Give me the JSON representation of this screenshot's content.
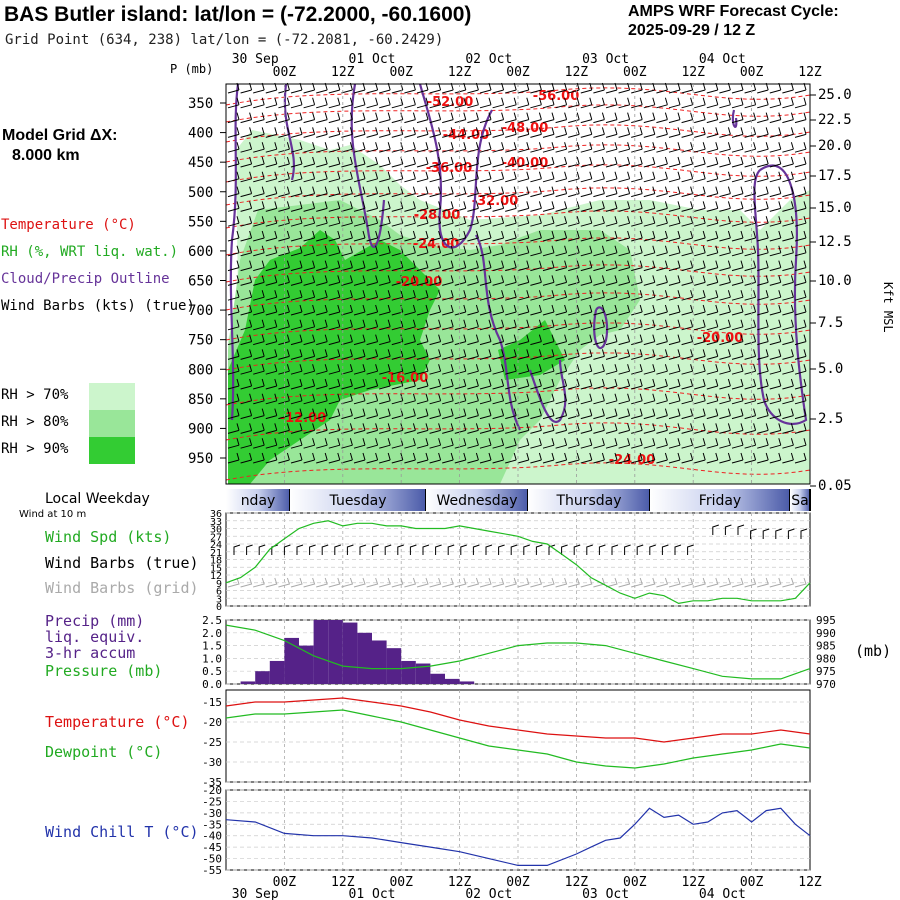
{
  "header": {
    "title": "BAS Butler island:  lat/lon = (-72.2000, -60.1600)",
    "grid_point": "Grid Point (634, 238) lat/lon = (-72.2081, -60.2429)",
    "forecast_title": "AMPS WRF Forecast Cycle:",
    "forecast_cycle": "2025-09-29 / 12  Z"
  },
  "left_panel": {
    "grid_title": "Model Grid ΔX:",
    "grid_value": "8.000 km",
    "legend": [
      {
        "text": "Temperature (°C)",
        "color": "#dd1111"
      },
      {
        "text": "RH (%, WRT liq. wat.)",
        "color": "#22aa22"
      },
      {
        "text": "Cloud/Precip Outline",
        "color": "#663399"
      },
      {
        "text": "Wind Barbs (kts) (true)",
        "color": "#000000"
      }
    ],
    "rh_legend": [
      {
        "text": "RH > 70%",
        "color": "#ccf5cc"
      },
      {
        "text": "RH > 80%",
        "color": "#99e699"
      },
      {
        "text": "RH > 90%",
        "color": "#33cc33"
      }
    ]
  },
  "time_axis": {
    "top_dates": [
      "30 Sep",
      "01 Oct",
      "02 Oct",
      "03 Oct",
      "04 Oct"
    ],
    "bottom_dates": [
      "30 Sep",
      "01 Oct",
      "02 Oct",
      "03 Oct",
      "04 Oct"
    ],
    "hour_labels": [
      "00Z",
      "12Z",
      "00Z",
      "12Z",
      "00Z",
      "12Z",
      "00Z",
      "12Z",
      "00Z",
      "12Z"
    ]
  },
  "weekday_bar": {
    "title": "Local Weekday",
    "sub": "Wind at 10 m",
    "days": [
      "nday",
      "Tuesday",
      "Wednesday",
      "Thursday",
      "Friday",
      "Sa"
    ]
  },
  "panel_labels": {
    "wind": [
      {
        "text": "Wind Spd (kts)",
        "color": "#22aa22"
      },
      {
        "text": "Wind Barbs (true)",
        "color": "#000000"
      },
      {
        "text": "Wind Barbs (grid)",
        "color": "#aaaaaa"
      }
    ],
    "precip": [
      {
        "text": "Precip (mm)",
        "color": "#552288"
      },
      {
        "text": "liq. equiv.",
        "color": "#552288"
      },
      {
        "text": "3-hr accum",
        "color": "#552288"
      },
      {
        "text": "Pressure (mb)",
        "color": "#22aa22"
      }
    ],
    "pressure_unit": "(mb)",
    "temp": [
      {
        "text": "Temperature (°C)",
        "color": "#dd1111"
      },
      {
        "text": "Dewpoint (°C)",
        "color": "#22aa22"
      }
    ],
    "chill": [
      {
        "text": "Wind Chill T (°C)",
        "color": "#2233aa"
      }
    ]
  },
  "chart_data": [
    {
      "type": "heatmap",
      "title": "Time-height cross section",
      "ylabel": "P (mb)",
      "y2label": "Kft MSL",
      "pressure_ticks": [
        350,
        400,
        450,
        500,
        550,
        600,
        650,
        700,
        750,
        800,
        850,
        900,
        950
      ],
      "height_ticks": [
        "25.0",
        "22.5",
        "20.0",
        "17.5",
        "15.0",
        "12.5",
        "10.0",
        "7.5",
        "5.0",
        "2.5",
        "0.05"
      ],
      "temperature_contour_labels": [
        "-56.00",
        "-52.00",
        "-48.00",
        "-44.00",
        "-40.00",
        "-36.00",
        "-32.00",
        "-28.00",
        "-24.00",
        "-20.00",
        "-20.00",
        "-16.00",
        "-12.00",
        "-24.00"
      ]
    },
    {
      "type": "line",
      "title": "Wind Spd (kts)",
      "ylabel": "kts",
      "y_ticks": [
        0,
        3,
        6,
        9,
        12,
        15,
        18,
        21,
        24,
        27,
        30,
        33,
        36
      ],
      "ylim": [
        0,
        36
      ],
      "x_hours": [
        0,
        3,
        6,
        9,
        12,
        15,
        18,
        21,
        24,
        27,
        30,
        33,
        36,
        39,
        42,
        45,
        48,
        51,
        54,
        57,
        60,
        63,
        66,
        69,
        72,
        75,
        78,
        81,
        84,
        87,
        90,
        93,
        96,
        99,
        102,
        105,
        108,
        111,
        114,
        117,
        120
      ],
      "series": [
        {
          "name": "Wind Spd (kts)",
          "values": [
            9,
            11,
            15,
            22,
            26,
            30,
            32,
            33,
            31,
            32,
            32,
            31,
            31,
            30,
            30,
            30,
            31,
            30,
            29,
            28,
            27,
            25,
            24,
            20,
            16,
            11,
            8,
            5,
            3,
            5,
            4,
            1,
            2,
            2,
            3,
            3,
            2,
            2,
            2,
            3,
            9
          ]
        }
      ]
    },
    {
      "type": "bar",
      "title": "Precip (mm) / Pressure (mb)",
      "y_ticks": [
        "0.0",
        "0.5",
        "1.0",
        "1.5",
        "2.0",
        "2.5"
      ],
      "ylim": [
        0,
        2.5
      ],
      "y2_ticks": [
        970,
        975,
        980,
        985,
        990,
        995
      ],
      "y2lim": [
        970,
        995
      ],
      "x_hours": [
        6,
        9,
        12,
        15,
        18,
        21,
        24,
        27,
        30,
        33,
        36,
        39,
        42,
        45,
        48,
        51
      ],
      "series": [
        {
          "name": "Precip (mm)",
          "values": [
            0.1,
            0.5,
            0.9,
            1.8,
            1.5,
            2.5,
            2.5,
            2.4,
            2.0,
            1.7,
            1.4,
            0.9,
            0.8,
            0.4,
            0.2,
            0.1
          ]
        },
        {
          "name": "Pressure (mb)",
          "x_hours": [
            0,
            6,
            12,
            18,
            24,
            30,
            36,
            42,
            48,
            54,
            60,
            66,
            72,
            78,
            84,
            90,
            96,
            102,
            108,
            114,
            120
          ],
          "values": [
            993,
            991,
            987,
            981,
            977,
            976,
            976,
            977,
            979,
            982,
            985,
            986,
            986,
            985,
            982,
            979,
            976,
            973,
            972,
            972,
            976
          ]
        }
      ]
    },
    {
      "type": "line",
      "title": "Temperature / Dewpoint (°C)",
      "y_ticks": [
        -35,
        -30,
        -25,
        -20,
        -15
      ],
      "ylim": [
        -35,
        -12
      ],
      "x_hours": [
        0,
        6,
        12,
        18,
        24,
        30,
        36,
        42,
        48,
        54,
        60,
        66,
        72,
        78,
        84,
        90,
        96,
        102,
        108,
        114,
        120
      ],
      "series": [
        {
          "name": "Temperature (°C)",
          "values": [
            -16,
            -15,
            -15,
            -14.5,
            -14,
            -15,
            -16,
            -17.5,
            -19.5,
            -21,
            -22,
            -23,
            -23.5,
            -24,
            -24,
            -25,
            -24,
            -23,
            -23,
            -22,
            -23
          ]
        },
        {
          "name": "Dewpoint (°C)",
          "values": [
            -19,
            -18,
            -18,
            -17.5,
            -17,
            -18.5,
            -20,
            -22,
            -24,
            -26,
            -27,
            -28,
            -30,
            -31,
            -31.5,
            -30.5,
            -29,
            -28,
            -27,
            -25.5,
            -26.5
          ]
        }
      ]
    },
    {
      "type": "line",
      "title": "Wind Chill T (°C)",
      "y_ticks": [
        -55,
        -50,
        -45,
        -40,
        -35,
        -30,
        -25,
        -20
      ],
      "ylim": [
        -55,
        -20
      ],
      "x_hours": [
        0,
        6,
        12,
        18,
        24,
        30,
        36,
        42,
        48,
        54,
        60,
        66,
        72,
        75,
        78,
        81,
        84,
        87,
        90,
        93,
        96,
        99,
        102,
        105,
        108,
        111,
        114,
        117,
        120
      ],
      "series": [
        {
          "name": "Wind Chill T (°C)",
          "values": [
            -33,
            -34,
            -39,
            -40,
            -40,
            -41,
            -43,
            -45,
            -47,
            -50,
            -53,
            -53,
            -48,
            -45,
            -42,
            -41,
            -35,
            -28,
            -32,
            -31,
            -35,
            -34,
            -30,
            -29,
            -34,
            -29,
            -28,
            -35,
            -40
          ]
        }
      ]
    }
  ]
}
